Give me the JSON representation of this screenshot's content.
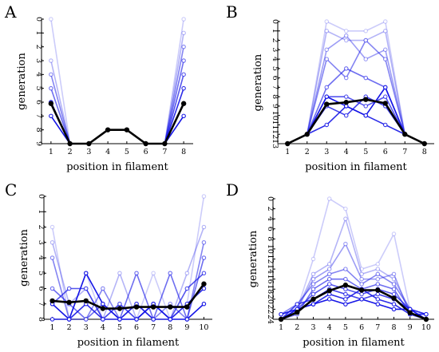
{
  "colors": {
    "blue": "#1515e6",
    "mean": "#000000"
  },
  "chart_data": [
    {
      "panel": "A",
      "type": "line",
      "xlabel": "position in filament",
      "ylabel": "generation",
      "x": [
        1,
        2,
        3,
        4,
        5,
        6,
        7,
        8
      ],
      "xlim": [
        0.5,
        8.5
      ],
      "ylim": [
        9,
        0
      ],
      "yticks": [
        0,
        1,
        2,
        3,
        4,
        5,
        6,
        7,
        8,
        9
      ],
      "grid": false,
      "legend": "none",
      "series": [
        {
          "values": [
            0,
            9,
            9,
            8,
            8,
            9,
            9,
            0
          ]
        },
        {
          "values": [
            3,
            9,
            9,
            8,
            8,
            9,
            9,
            1
          ]
        },
        {
          "values": [
            4,
            9,
            9,
            8,
            8,
            9,
            9,
            2
          ]
        },
        {
          "values": [
            5,
            9,
            9,
            8,
            8,
            9,
            9,
            3
          ]
        },
        {
          "values": [
            6,
            9,
            9,
            8,
            8,
            9,
            9,
            4
          ]
        },
        {
          "values": [
            6,
            9,
            9,
            8,
            8,
            9,
            9,
            5
          ]
        },
        {
          "values": [
            7,
            9,
            9,
            8,
            8,
            9,
            9,
            7
          ]
        }
      ],
      "mean": [
        6.1,
        9,
        9,
        8,
        8,
        9,
        9,
        6.1
      ]
    },
    {
      "panel": "B",
      "type": "line",
      "xlabel": "position in filament",
      "ylabel": "generation",
      "x": [
        1,
        2,
        3,
        4,
        5,
        6,
        7,
        8
      ],
      "xlim": [
        0.5,
        8.5
      ],
      "ylim": [
        13,
        0
      ],
      "yticks": [
        0,
        1,
        2,
        3,
        4,
        5,
        6,
        7,
        8,
        9,
        10,
        11,
        12,
        13
      ],
      "grid": false,
      "legend": "none",
      "series": [
        {
          "values": [
            13,
            12,
            0,
            1,
            1,
            0,
            12,
            13
          ]
        },
        {
          "values": [
            13,
            12,
            1,
            2,
            2,
            1,
            12,
            13
          ]
        },
        {
          "values": [
            13,
            12,
            3,
            1.5,
            4,
            3,
            12,
            13
          ]
        },
        {
          "values": [
            13,
            12,
            4,
            6,
            2,
            4,
            12,
            13
          ]
        },
        {
          "values": [
            13,
            12,
            7,
            5,
            6,
            7,
            12,
            13
          ]
        },
        {
          "values": [
            13,
            12,
            8,
            8,
            9,
            8,
            12,
            13
          ]
        },
        {
          "values": [
            13,
            12,
            9,
            10,
            8,
            9,
            12,
            13
          ]
        },
        {
          "values": [
            13,
            12,
            11,
            9,
            10,
            11,
            12,
            13
          ]
        },
        {
          "values": [
            13,
            12,
            8,
            9,
            10,
            7,
            12,
            13
          ]
        }
      ],
      "mean": [
        13,
        12,
        8.8,
        8.6,
        8.3,
        8.7,
        12,
        13
      ]
    },
    {
      "panel": "C",
      "type": "line",
      "xlabel": "position in filament",
      "ylabel": "generation",
      "x": [
        1,
        2,
        3,
        4,
        5,
        6,
        7,
        8,
        9,
        10
      ],
      "xlim": [
        0.5,
        10.5
      ],
      "ylim": [
        8,
        0
      ],
      "yticks": [
        0,
        1,
        2,
        3,
        4,
        5,
        6,
        7,
        8
      ],
      "grid": false,
      "legend": "none",
      "series": [
        {
          "values": [
            2,
            8,
            5,
            8,
            7,
            8,
            5,
            8,
            7,
            0
          ]
        },
        {
          "values": [
            3,
            7,
            6,
            8,
            5,
            8,
            7,
            8,
            5,
            2
          ]
        },
        {
          "values": [
            4,
            8,
            8,
            6,
            8,
            7,
            8,
            7,
            8,
            3
          ]
        },
        {
          "values": [
            6,
            7,
            8,
            7,
            8,
            5,
            8,
            5,
            8,
            4
          ]
        },
        {
          "values": [
            7,
            6,
            6,
            8,
            7,
            8,
            7,
            8,
            6,
            5
          ]
        },
        {
          "values": [
            8,
            8,
            7,
            8,
            8,
            7,
            8,
            8,
            7,
            6
          ]
        },
        {
          "values": [
            7,
            8,
            5,
            7,
            8,
            8,
            7,
            8,
            8,
            7
          ]
        }
      ],
      "mean": [
        6.8,
        6.9,
        6.8,
        7.3,
        7.3,
        7.2,
        7.2,
        7.2,
        7.2,
        5.7
      ]
    },
    {
      "panel": "D",
      "type": "line",
      "xlabel": "position in filament",
      "ylabel": "generation",
      "x": [
        1,
        2,
        3,
        4,
        5,
        6,
        7,
        8,
        9,
        10
      ],
      "xlim": [
        0.5,
        10.5
      ],
      "ylim": [
        24,
        0
      ],
      "yticks": [
        0,
        2,
        4,
        6,
        8,
        10,
        12,
        14,
        16,
        18,
        20,
        22,
        24
      ],
      "grid": false,
      "legend": "none",
      "series": [
        {
          "values": [
            24,
            22,
            12,
            0,
            2,
            14,
            13,
            7,
            22,
            24
          ]
        },
        {
          "values": [
            23,
            22,
            15,
            13,
            4,
            15,
            14,
            16,
            22,
            23
          ]
        },
        {
          "values": [
            24,
            22,
            16,
            14,
            9,
            16,
            16,
            15,
            23,
            24
          ]
        },
        {
          "values": [
            23,
            21,
            17,
            15,
            14,
            17,
            15,
            17,
            22,
            23
          ]
        },
        {
          "values": [
            24,
            23,
            18,
            16,
            16,
            18,
            17,
            18,
            23,
            24
          ]
        },
        {
          "values": [
            23,
            22,
            19,
            17,
            18,
            19,
            18,
            19,
            22,
            23
          ]
        },
        {
          "values": [
            24,
            21,
            20,
            18,
            19,
            20,
            19,
            20,
            22,
            24
          ]
        },
        {
          "values": [
            23,
            22,
            21,
            19,
            20,
            18,
            20,
            21,
            23,
            23
          ]
        },
        {
          "values": [
            24,
            22,
            21,
            20,
            21,
            20,
            21,
            22,
            22,
            24
          ]
        }
      ],
      "mean": [
        24,
        22.6,
        20,
        18.3,
        17.2,
        18.2,
        18.2,
        19.8,
        22.7,
        24
      ]
    }
  ]
}
